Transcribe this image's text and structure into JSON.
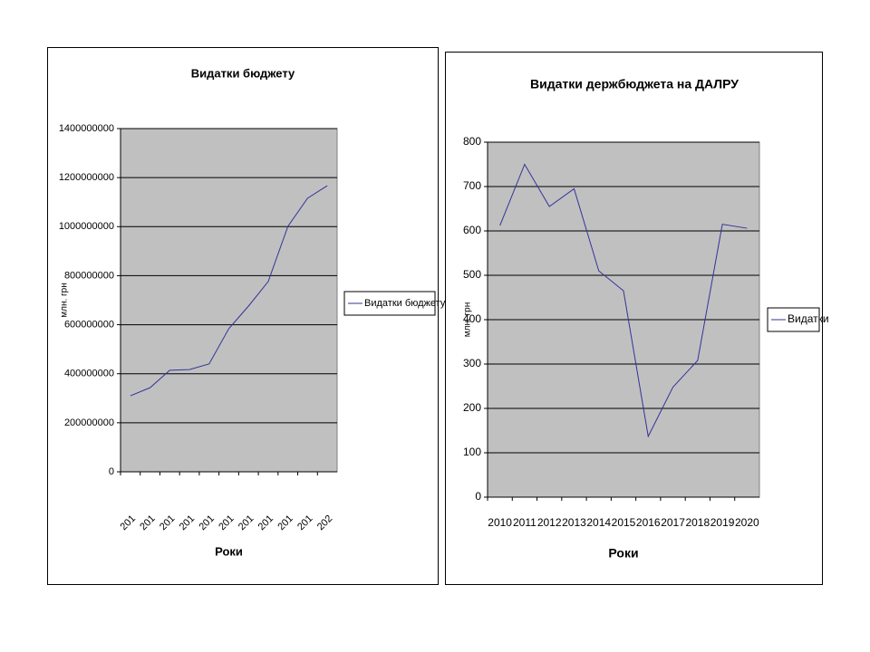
{
  "chart_data": [
    {
      "type": "line",
      "title": "Видатки бюджету",
      "x_label": "Роки",
      "y_label": "млн. грн",
      "categories": [
        "201",
        "201",
        "201",
        "201",
        "201",
        "201",
        "201",
        "201",
        "201",
        "201",
        "202"
      ],
      "series": [
        {
          "name": "Видатки бюджету",
          "color": "#333399",
          "values": [
            310000000,
            343000000,
            414000000,
            417000000,
            440000000,
            584000000,
            676000000,
            776000000,
            1001000000,
            1116000000,
            1167000000
          ]
        }
      ],
      "ylim": [
        0,
        1400000000
      ],
      "yticks": [
        0,
        200000000,
        400000000,
        600000000,
        800000000,
        1000000000,
        1200000000,
        1400000000
      ],
      "grid": true,
      "legend": "right"
    },
    {
      "type": "line",
      "title": "Видатки держбюджета на ДАЛРУ",
      "x_label": "Роки",
      "y_label": "млн. грн",
      "categories": [
        "2010",
        "2011",
        "2012",
        "2013",
        "2014",
        "2015",
        "2016",
        "2017",
        "2018",
        "2019",
        "2020"
      ],
      "series": [
        {
          "name": "Видатки",
          "color": "#333399",
          "values": [
            612,
            750,
            655,
            695,
            510,
            465,
            137,
            248,
            308,
            615,
            606
          ]
        }
      ],
      "ylim": [
        0,
        800
      ],
      "yticks": [
        0,
        100,
        200,
        300,
        400,
        500,
        600,
        700,
        800
      ],
      "grid": true,
      "legend": "right"
    }
  ]
}
